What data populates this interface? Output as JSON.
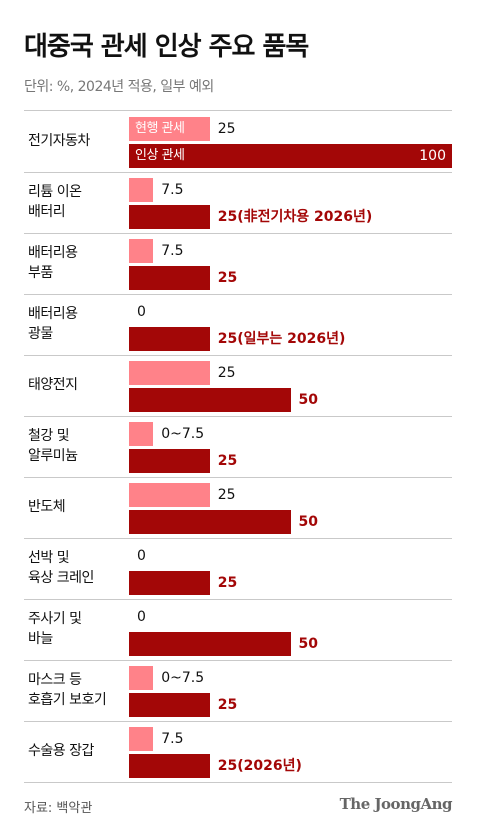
{
  "title": "대중국 관세 인상 주요 품목",
  "subtitle": "단위: %, 2024년 적용, 일부 예외",
  "source": "자료: 백악관",
  "logo": "The JoongAng",
  "colors": {
    "current": "#ff8289",
    "new": "#a30707"
  },
  "chart_data": {
    "type": "bar",
    "orientation": "horizontal",
    "xlim": [
      0,
      100
    ],
    "series": [
      {
        "name": "현행 관세",
        "color": "#ff8289"
      },
      {
        "name": "인상 관세",
        "color": "#a30707"
      }
    ],
    "categories": [
      {
        "label": [
          "전기자동차"
        ],
        "current": 25,
        "current_label": "25",
        "new": 100,
        "new_label": "100"
      },
      {
        "label": [
          "리튬 이온",
          "배터리"
        ],
        "current": 7.5,
        "current_label": "7.5",
        "new": 25,
        "new_label": "25(非전기차용 2026년)"
      },
      {
        "label": [
          "배터리용",
          "부품"
        ],
        "current": 7.5,
        "current_label": "7.5",
        "new": 25,
        "new_label": "25"
      },
      {
        "label": [
          "배터리용",
          "광물"
        ],
        "current": 0,
        "current_label": "0",
        "new": 25,
        "new_label": "25(일부는 2026년)"
      },
      {
        "label": [
          "태양전지"
        ],
        "current": 25,
        "current_label": "25",
        "new": 50,
        "new_label": "50"
      },
      {
        "label": [
          "철강 및",
          "알루미늄"
        ],
        "current": 7.5,
        "current_label": "0~7.5",
        "new": 25,
        "new_label": "25"
      },
      {
        "label": [
          "반도체"
        ],
        "current": 25,
        "current_label": "25",
        "new": 50,
        "new_label": "50"
      },
      {
        "label": [
          "선박 및",
          "육상 크레인"
        ],
        "current": 0,
        "current_label": "0",
        "new": 25,
        "new_label": "25"
      },
      {
        "label": [
          "주사기 및",
          "바늘"
        ],
        "current": 0,
        "current_label": "0",
        "new": 50,
        "new_label": "50"
      },
      {
        "label": [
          "마스크 등",
          "호흡기 보호기"
        ],
        "current": 7.5,
        "current_label": "0~7.5",
        "new": 25,
        "new_label": "25"
      },
      {
        "label": [
          "수술용 장갑"
        ],
        "current": 7.5,
        "current_label": "7.5",
        "new": 25,
        "new_label": "25(2026년)"
      }
    ]
  }
}
